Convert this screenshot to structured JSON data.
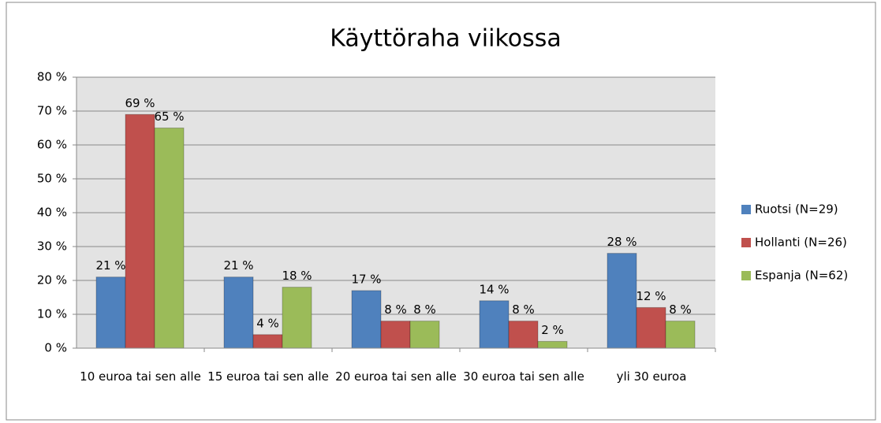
{
  "chart_data": {
    "type": "bar",
    "title": "Käyttöraha viikossa",
    "categories": [
      "10 euroa tai sen alle",
      "15 euroa tai sen alle",
      "20 euroa tai sen alle",
      "30 euroa tai sen alle",
      "yli 30 euroa"
    ],
    "series": [
      {
        "name": "Ruotsi (N=29)",
        "color": "#4f81bd",
        "values": [
          21,
          21,
          17,
          14,
          28
        ],
        "value_labels": [
          "21 %",
          "21 %",
          "17 %",
          "14 %",
          "28 %"
        ]
      },
      {
        "name": "Hollanti (N=26)",
        "color": "#c0504d",
        "values": [
          69,
          4,
          8,
          8,
          12
        ],
        "value_labels": [
          "69 %",
          "4 %",
          "8 %",
          "8 %",
          "12 %"
        ]
      },
      {
        "name": "Espanja (N=62)",
        "color": "#9bbb59",
        "values": [
          65,
          18,
          8,
          2,
          8
        ],
        "value_labels": [
          "65 %",
          "18 %",
          "8 %",
          "2 %",
          "8 %"
        ]
      }
    ],
    "ylim": [
      0,
      80
    ],
    "yticks": [
      {
        "value": 0,
        "label": "0 %"
      },
      {
        "value": 10,
        "label": "10 %"
      },
      {
        "value": 20,
        "label": "20 %"
      },
      {
        "value": 30,
        "label": "30 %"
      },
      {
        "value": 40,
        "label": "40 %"
      },
      {
        "value": 50,
        "label": "50 %"
      },
      {
        "value": 60,
        "label": "60 %"
      },
      {
        "value": 70,
        "label": "70 %"
      },
      {
        "value": 80,
        "label": "80 %"
      }
    ],
    "grid": true,
    "legend": "right"
  }
}
